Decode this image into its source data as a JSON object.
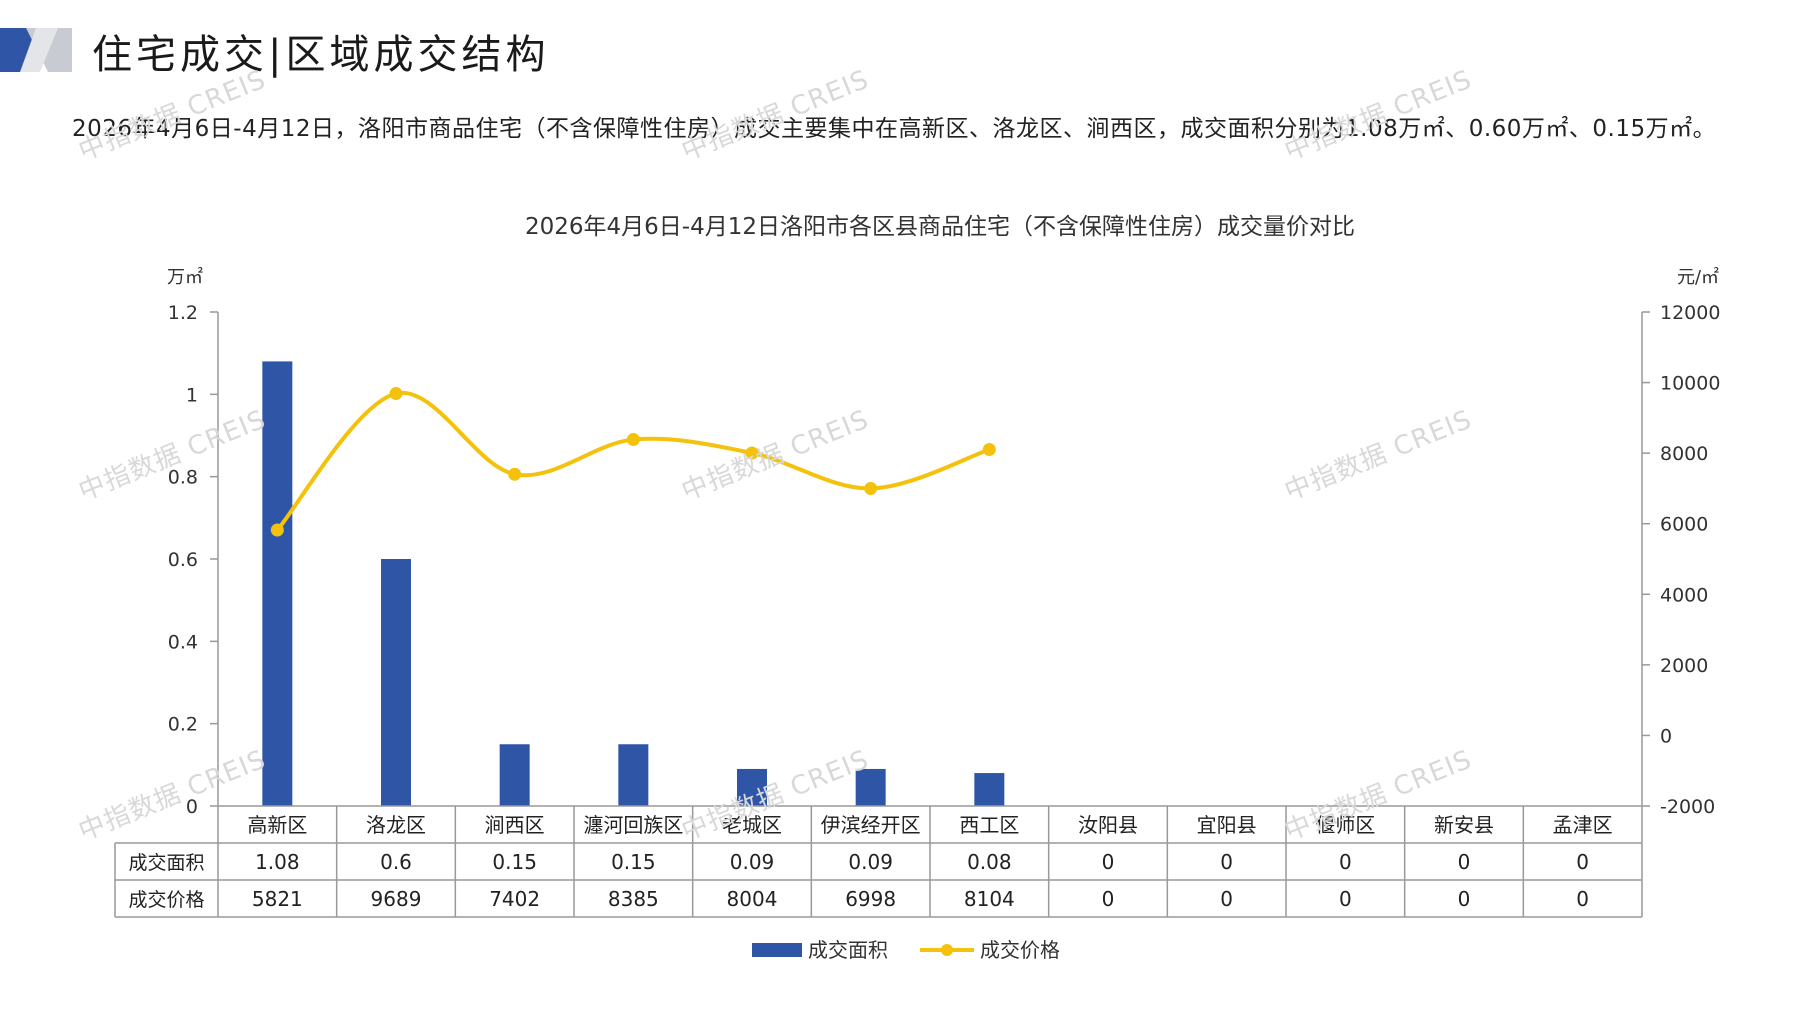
{
  "header": {
    "title": "住宅成交|区域成交结构",
    "summary": "2026年4月6日-4月12日，洛阳市商品住宅（不含保障性住房）成交主要集中在高新区、洛龙区、涧西区，成交面积分别为1.08万㎡、0.60万㎡、0.15万㎡。"
  },
  "watermark": "中指数据 CREIS",
  "colors": {
    "bar": "#2f56a6",
    "line": "#f4c20d",
    "grid": "#999999",
    "axis": "#999999"
  },
  "chart_data": {
    "type": "bar",
    "title": "2026年4月6日-4月12日洛阳市各区县商品住宅（不含保障性住房）成交量价对比",
    "y_left_unit": "万㎡",
    "y_right_unit": "元/㎡",
    "ylim_left": [
      0,
      1.2
    ],
    "ylim_right": [
      -2000,
      12000
    ],
    "y_left_ticks": [
      "0",
      "0.2",
      "0.4",
      "0.6",
      "0.8",
      "1",
      "1.2"
    ],
    "y_right_ticks": [
      "-2000",
      "0",
      "2000",
      "4000",
      "6000",
      "8000",
      "10000",
      "12000"
    ],
    "categories": [
      "高新区",
      "洛龙区",
      "涧西区",
      "瀍河回族区",
      "老城区",
      "伊滨经开区",
      "西工区",
      "汝阳县",
      "宜阳县",
      "偃师区",
      "新安县",
      "孟津区"
    ],
    "series": [
      {
        "name": "成交面积",
        "type": "bar",
        "axis": "left",
        "values": [
          1.08,
          0.6,
          0.15,
          0.15,
          0.09,
          0.09,
          0.08,
          0,
          0,
          0,
          0,
          0
        ],
        "labels": [
          "1.08",
          "0.6",
          "0.15",
          "0.15",
          "0.09",
          "0.09",
          "0.08",
          "0",
          "0",
          "0",
          "0",
          "0"
        ]
      },
      {
        "name": "成交价格",
        "type": "line",
        "axis": "right",
        "values": [
          5821,
          9689,
          7402,
          8385,
          8004,
          6998,
          8104,
          0,
          0,
          0,
          0,
          0
        ],
        "labels": [
          "5821",
          "9689",
          "7402",
          "8385",
          "8004",
          "6998",
          "8104",
          "0",
          "0",
          "0",
          "0",
          "0"
        ],
        "plotted_count": 7
      }
    ],
    "legend": "bottom"
  }
}
